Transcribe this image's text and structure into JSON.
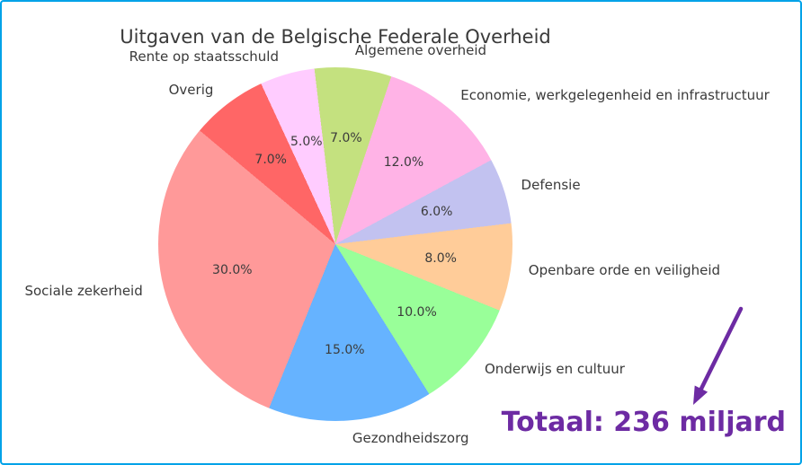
{
  "window": {
    "border_color": "#00a2e8",
    "background": "#ffffff"
  },
  "chart_data": {
    "type": "pie",
    "title": "Uitgaven van de Belgische Federale Overheid",
    "start_angle_deg": 140,
    "direction": "counterclockwise",
    "label_distance": 1.1,
    "pct_distance": 0.6,
    "legend": "none",
    "slices": [
      {
        "label": "Sociale zekerheid",
        "value_pct": 30.0,
        "pct_label": "30.0%",
        "color": "#ff9999"
      },
      {
        "label": "Gezondheidszorg",
        "value_pct": 15.0,
        "pct_label": "15.0%",
        "color": "#66b3ff"
      },
      {
        "label": "Onderwijs en cultuur",
        "value_pct": 10.0,
        "pct_label": "10.0%",
        "color": "#99ff99"
      },
      {
        "label": "Openbare orde en veiligheid",
        "value_pct": 8.0,
        "pct_label": "8.0%",
        "color": "#ffcc99"
      },
      {
        "label": "Defensie",
        "value_pct": 6.0,
        "pct_label": "6.0%",
        "color": "#c2c2f0"
      },
      {
        "label": "Economie, werkgelegenheid en infrastructuur",
        "value_pct": 12.0,
        "pct_label": "12.0%",
        "color": "#ffb3e6"
      },
      {
        "label": "Algemene overheid",
        "value_pct": 7.0,
        "pct_label": "7.0%",
        "color": "#c4e17f"
      },
      {
        "label": "Rente op staatsschuld",
        "value_pct": 5.0,
        "pct_label": "5.0%",
        "color": "#ffccff"
      },
      {
        "label": "Overig",
        "value_pct": 7.0,
        "pct_label": "7.0%",
        "color": "#ff6666"
      }
    ],
    "annotation": {
      "text": "Totaal: 236 miljard",
      "color": "#6d2ba3",
      "arrow": "purple arrow pointing down-left to the total text"
    },
    "text_color": "#3a3a3a"
  }
}
